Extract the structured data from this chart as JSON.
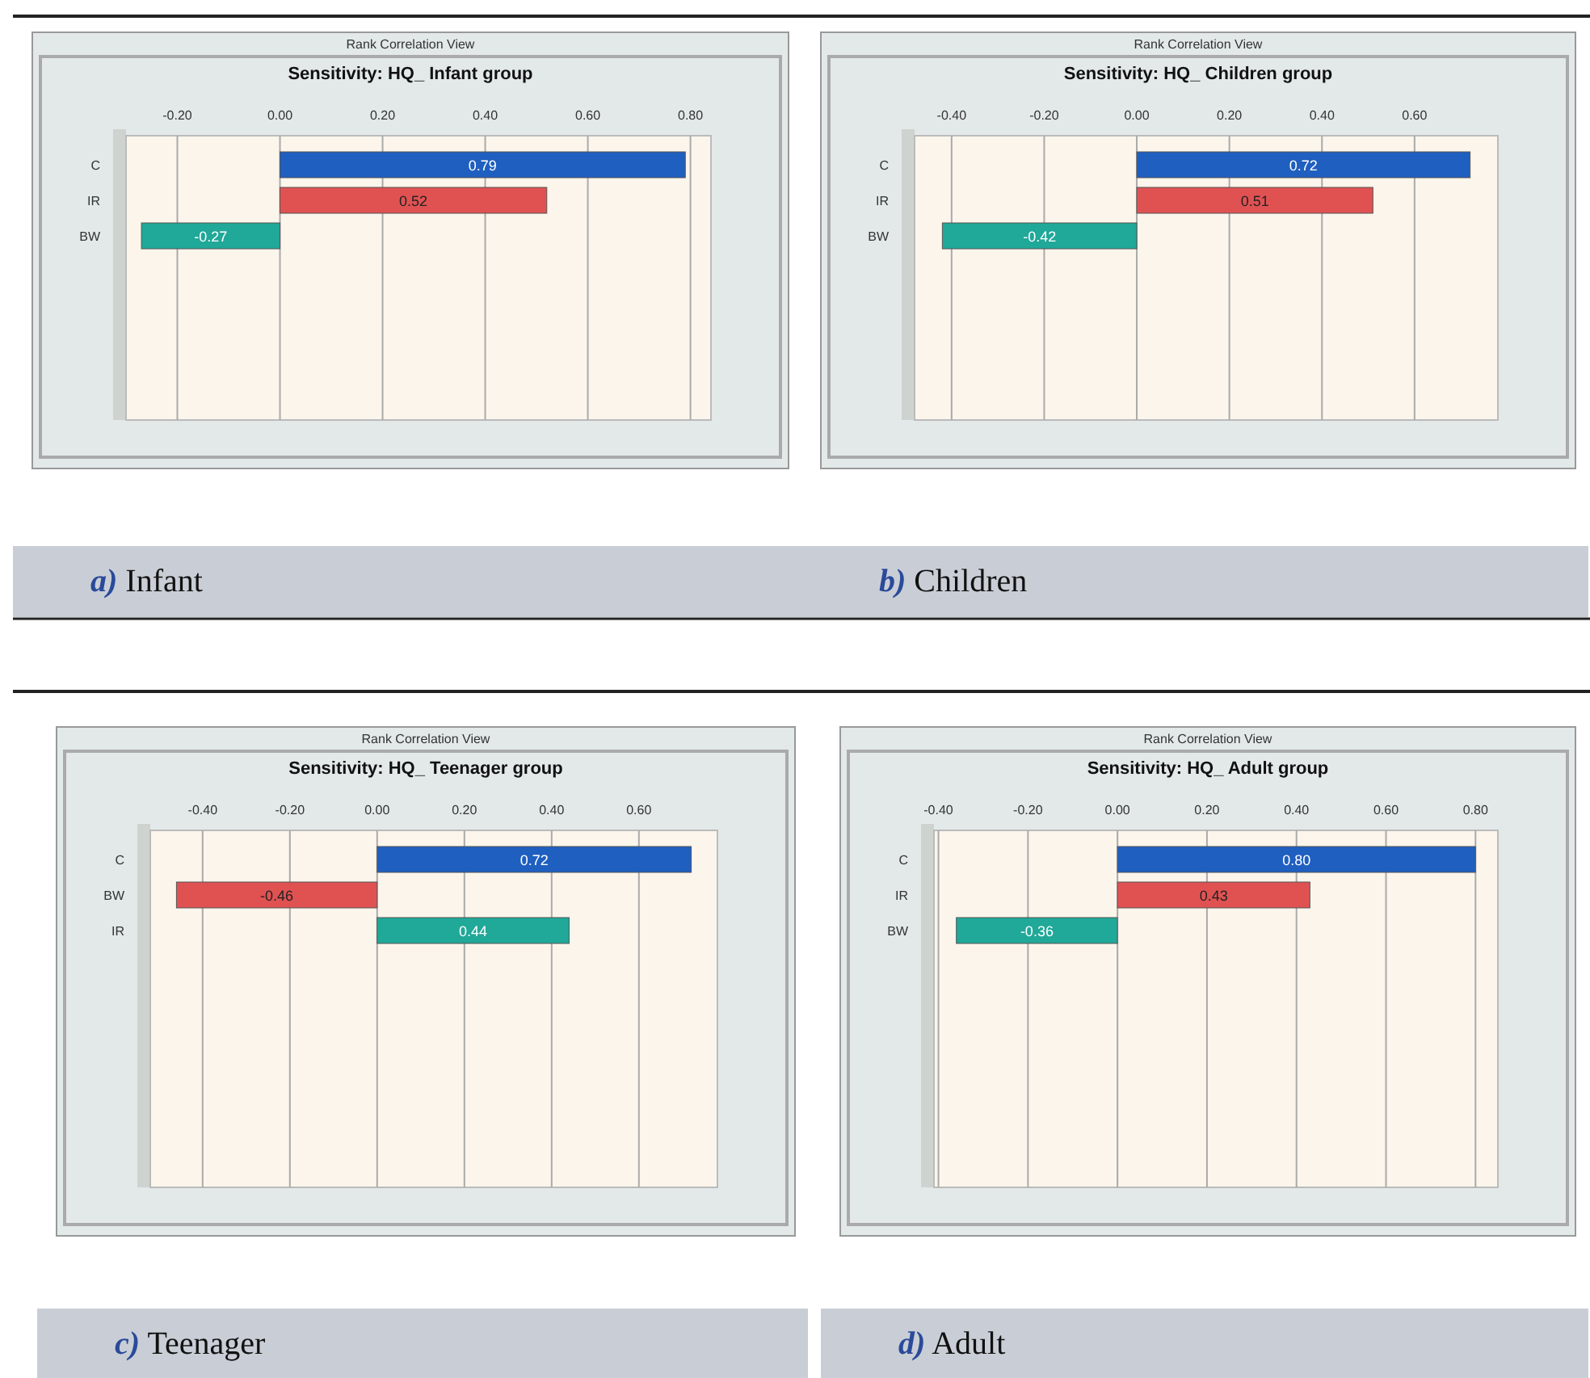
{
  "chart_data": [
    {
      "type": "bar",
      "orientation": "horizontal",
      "subtitle": "Rank Correlation View",
      "title": "Sensitivity: HQ_ Infant group",
      "categories": [
        "C",
        "IR",
        "BW"
      ],
      "values": [
        0.79,
        0.52,
        -0.27
      ],
      "colors": [
        "#1f5fc0",
        "#e05252",
        "#20a898"
      ],
      "data_labels": true,
      "xlim": [
        -0.3,
        0.84
      ],
      "xticks": [
        {
          "value": -0.2,
          "label": "-0.20"
        },
        {
          "value": 0,
          "label": "0.00"
        },
        {
          "value": 0.2,
          "label": "0.20"
        },
        {
          "value": 0.4,
          "label": "0.40"
        },
        {
          "value": 0.6,
          "label": "0.60"
        },
        {
          "value": 0.8,
          "label": "0.80"
        }
      ],
      "grid": "x",
      "annotations": [
        "a) Infant"
      ]
    },
    {
      "type": "bar",
      "orientation": "horizontal",
      "subtitle": "Rank Correlation View",
      "title": "Sensitivity: HQ_ Children group",
      "categories": [
        "C",
        "IR",
        "BW"
      ],
      "values": [
        0.72,
        0.51,
        -0.42
      ],
      "colors": [
        "#1f5fc0",
        "#e05252",
        "#20a898"
      ],
      "data_labels": true,
      "xlim": [
        -0.48,
        0.78
      ],
      "xticks": [
        {
          "value": -0.4,
          "label": "-0.40"
        },
        {
          "value": -0.2,
          "label": "-0.20"
        },
        {
          "value": 0,
          "label": "0.00"
        },
        {
          "value": 0.2,
          "label": "0.20"
        },
        {
          "value": 0.4,
          "label": "0.40"
        },
        {
          "value": 0.6,
          "label": "0.60"
        }
      ],
      "grid": "x",
      "annotations": [
        "b) Children"
      ]
    },
    {
      "type": "bar",
      "orientation": "horizontal",
      "subtitle": "Rank Correlation View",
      "title": "Sensitivity: HQ_ Teenager group",
      "categories": [
        "C",
        "BW",
        "IR"
      ],
      "values": [
        0.72,
        -0.46,
        0.44
      ],
      "colors": [
        "#1f5fc0",
        "#e05252",
        "#20a898"
      ],
      "data_labels": true,
      "xlim": [
        -0.52,
        0.78
      ],
      "xticks": [
        {
          "value": -0.4,
          "label": "-0.40"
        },
        {
          "value": -0.2,
          "label": "-0.20"
        },
        {
          "value": 0,
          "label": "0.00"
        },
        {
          "value": 0.2,
          "label": "0.20"
        },
        {
          "value": 0.4,
          "label": "0.40"
        },
        {
          "value": 0.6,
          "label": "0.60"
        }
      ],
      "grid": "x",
      "annotations": [
        "c) Teenager"
      ]
    },
    {
      "type": "bar",
      "orientation": "horizontal",
      "subtitle": "Rank Correlation View",
      "title": "Sensitivity: HQ_ Adult group",
      "categories": [
        "C",
        "IR",
        "BW"
      ],
      "values": [
        0.8,
        0.43,
        -0.36
      ],
      "value_labels": [
        "0.80",
        "0.43",
        "-0.36"
      ],
      "colors": [
        "#1f5fc0",
        "#e05252",
        "#20a898"
      ],
      "xlim": [
        -0.41,
        0.85
      ],
      "xticks": [
        {
          "value": -0.4,
          "label": "-0.40"
        },
        {
          "value": -0.2,
          "label": "-0.20"
        },
        {
          "value": 0,
          "label": "0.00"
        },
        {
          "value": 0.2,
          "label": "0.20"
        },
        {
          "value": 0.4,
          "label": "0.40"
        },
        {
          "value": 0.6,
          "label": "0.60"
        },
        {
          "value": 0.8,
          "label": "0.80"
        }
      ],
      "grid": "x",
      "annotations": [
        "d) Adult"
      ]
    }
  ]
}
